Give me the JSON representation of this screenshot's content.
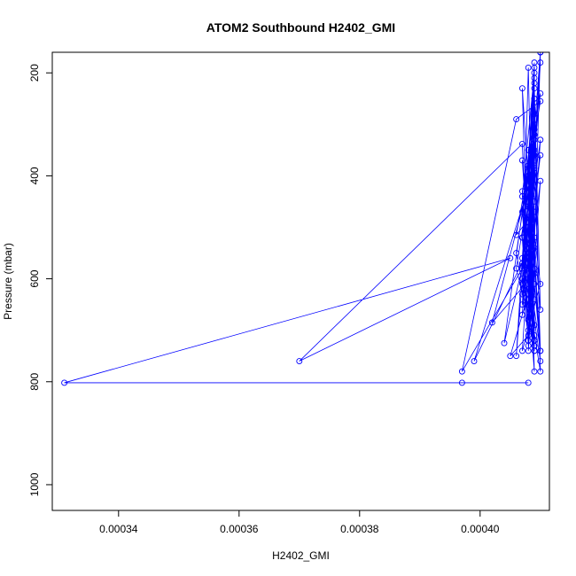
{
  "chart_data": {
    "type": "scatter",
    "title": "ATOM2 Southbound H2402_GMI",
    "xlabel": "H2402_GMI",
    "ylabel": "Pressure (mbar)",
    "xlim": [
      0.000329,
      0.0004115
    ],
    "ylim": [
      1050,
      160
    ],
    "y_reversed": true,
    "x_ticks": [
      0.00034,
      0.00036,
      0.00038,
      0.0004
    ],
    "x_tick_labels": [
      "0.00034",
      "0.00036",
      "0.00038",
      "0.00040"
    ],
    "y_ticks": [
      200,
      400,
      600,
      800,
      1000
    ],
    "y_tick_labels": [
      "200",
      "400",
      "600",
      "800",
      "1000"
    ],
    "grid": false,
    "series": [
      {
        "color": "#0000ff",
        "marker": "open-circle",
        "connected": true,
        "x": [
          0.000408,
          0.000397,
          0.000331,
          0.000405,
          0.00037,
          0.000407,
          0.000408,
          0.000409,
          0.000407,
          0.000408,
          0.000409,
          0.00041,
          0.000408,
          0.000409,
          0.000406,
          0.000409,
          0.000407,
          0.000408,
          0.000407,
          0.000409,
          0.000408,
          0.000409,
          0.000407,
          0.000409,
          0.000408,
          0.00041,
          0.000406,
          0.000397,
          0.000408,
          0.000409,
          0.000408,
          0.000409,
          0.000407,
          0.00041,
          0.000408,
          0.000409,
          0.000407,
          0.000409,
          0.000408,
          0.00041,
          0.000409,
          0.000408,
          0.000409,
          0.00041,
          0.000408,
          0.000409,
          0.000407,
          0.000409,
          0.000408,
          0.000409,
          0.000406,
          0.000409,
          0.000408,
          0.00041,
          0.000408,
          0.000409,
          0.000407,
          0.000408,
          0.00041,
          0.000408,
          0.000409,
          0.000407,
          0.000409,
          0.000409,
          0.000408,
          0.00041,
          0.000407,
          0.000409,
          0.000408,
          0.000409,
          0.000406,
          0.000409,
          0.000407,
          0.000408,
          0.000405,
          0.000409,
          0.000402,
          0.000408,
          0.00041,
          0.000407,
          0.000408,
          0.000409,
          0.000404,
          0.000409,
          0.000407,
          0.00041,
          0.000407,
          0.000409,
          0.000408,
          0.000409,
          0.000408,
          0.000409,
          0.000399,
          0.000409,
          0.000408,
          0.000409,
          0.00041,
          0.000407,
          0.000409,
          0.000408,
          0.000409,
          0.000407,
          0.000408,
          0.000409,
          0.000406,
          0.000409,
          0.000407,
          0.000408,
          0.00041,
          0.000408,
          0.000409,
          0.000407,
          0.000408,
          0.000409,
          0.000408,
          0.000409,
          0.000407,
          0.000409,
          0.000408,
          0.000409,
          0.00041,
          0.000408,
          0.000409,
          0.000408,
          0.000409,
          0.000408,
          0.000409,
          0.000409,
          0.00041
        ],
        "y": [
          802,
          802,
          802,
          560,
          760,
          338,
          620,
          280,
          520,
          730,
          360,
          740,
          580,
          180,
          750,
          300,
          430,
          700,
          520,
          330,
          650,
          250,
          470,
          780,
          400,
          255,
          290,
          780,
          560,
          710,
          500,
          210,
          570,
          240,
          350,
          730,
          600,
          310,
          460,
          160,
          540,
          720,
          380,
          180,
          560,
          690,
          440,
          200,
          520,
          320,
          515,
          470,
          740,
          410,
          610,
          350,
          570,
          680,
          330,
          500,
          730,
          580,
          190,
          580,
          380,
          760,
          520,
          640,
          450,
          720,
          580,
          360,
          630,
          710,
          750,
          590,
          685,
          420,
          610,
          740,
          560,
          300,
          725,
          480,
          575,
          360,
          650,
          220,
          490,
          740,
          600,
          385,
          760,
          520,
          680,
          250,
          780,
          560,
          330,
          720,
          470,
          610,
          190,
          740,
          550,
          320,
          670,
          480,
          740,
          350,
          590,
          230,
          640,
          450,
          540,
          720,
          370,
          610,
          490,
          230,
          660,
          400,
          720,
          510,
          280,
          580,
          730,
          360,
          160
        ]
      }
    ]
  }
}
